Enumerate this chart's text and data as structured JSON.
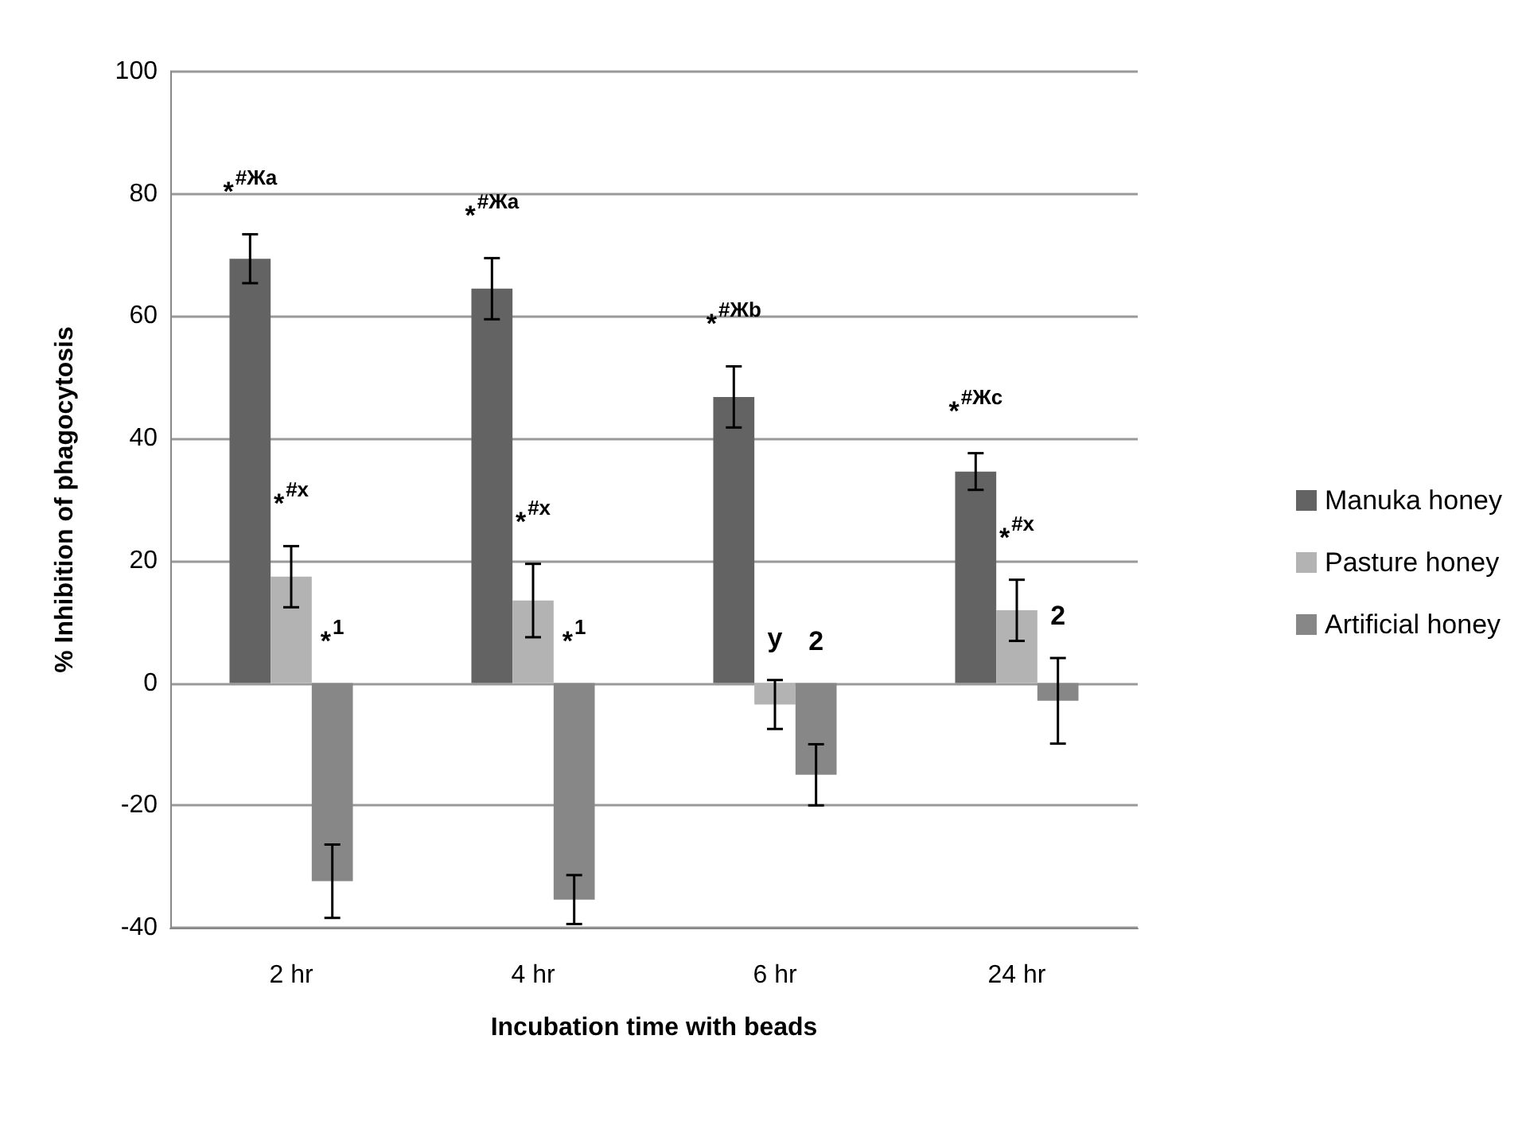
{
  "chart_data": {
    "type": "bar",
    "xlabel": "Incubation time with beads",
    "ylabel": "% Inhibition of phagocytosis",
    "categories": [
      "2 hr",
      "4 hr",
      "6 hr",
      "24 hr"
    ],
    "series": [
      {
        "name": "Manuka honey",
        "color": "#636363",
        "values": [
          69.4,
          64.5,
          46.8,
          34.6
        ],
        "errors": [
          4,
          5,
          5,
          3
        ]
      },
      {
        "name": "Pasture honey",
        "color": "#b3b3b3",
        "values": [
          17.4,
          13.5,
          -3.5,
          11.9
        ],
        "errors": [
          5,
          6,
          4,
          5
        ]
      },
      {
        "name": "Artificial honey",
        "color": "#878787",
        "values": [
          -32.4,
          -35.4,
          -15,
          -2.9
        ],
        "errors": [
          6,
          4,
          5,
          7
        ]
      }
    ],
    "ylim": [
      -40,
      100
    ],
    "yticks": [
      -40,
      -20,
      0,
      20,
      40,
      60,
      80,
      100
    ],
    "grid": "y",
    "legend": "right",
    "annotations": [
      "*$^{#Жa}$",
      "*$^{#x}$",
      "*$^{1}$",
      "*$^{#Жa}$",
      "*$^{#x}$",
      "*$^{1}$",
      "*$^{#Жb}$",
      "y",
      "2",
      "*$^{#Жc}$",
      "*$^{#x}$",
      "2"
    ]
  }
}
